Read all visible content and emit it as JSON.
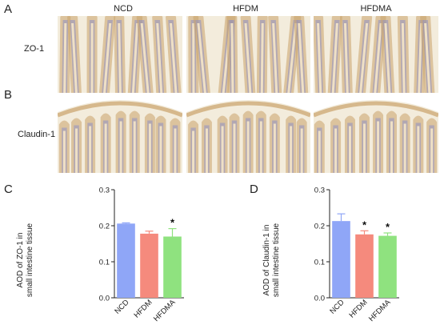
{
  "panels": {
    "A": "A",
    "B": "B",
    "C": "C",
    "D": "D"
  },
  "groups": [
    "NCD",
    "HFDM",
    "HFDMA"
  ],
  "rows": {
    "zo1": "ZO-1",
    "claudin1": "Claudin-1"
  },
  "colors": {
    "NCD": "#8fa6f7",
    "HFDM": "#f58a7d",
    "HFDMA": "#8fe27f",
    "tissue_stroma": "#f6e7c8",
    "tissue_nuclei": "#8e8fc4",
    "tissue_brown": "#c9a36a"
  },
  "chart_data": [
    {
      "type": "bar",
      "title": "",
      "xlabel": "",
      "ylabel": "AOD of ZO-1 in small intestine tissue",
      "ylabel_lines": [
        "AOD of ZO-1 in",
        "small intestine tissue"
      ],
      "categories": [
        "NCD",
        "HFDM",
        "HFDMA"
      ],
      "values": [
        0.206,
        0.178,
        0.17
      ],
      "errors": [
        0.002,
        0.007,
        0.022
      ],
      "significance": [
        "",
        "",
        "*"
      ],
      "ylim": [
        0.0,
        0.3
      ],
      "yticks": [
        "0.0",
        "0.1",
        "0.2",
        "0.3"
      ],
      "grid": false
    },
    {
      "type": "bar",
      "title": "",
      "xlabel": "",
      "ylabel": "AOD of Claudin-1 in small intestine tissue",
      "ylabel_lines": [
        "AOD of Claudin-1 in",
        "small intestine tissue"
      ],
      "categories": [
        "NCD",
        "HFDM",
        "HFDMA"
      ],
      "values": [
        0.213,
        0.176,
        0.172
      ],
      "errors": [
        0.02,
        0.01,
        0.008
      ],
      "significance": [
        "",
        "*",
        "*"
      ],
      "ylim": [
        0.0,
        0.3
      ],
      "yticks": [
        "0.0",
        "0.1",
        "0.2",
        "0.3"
      ],
      "grid": false
    }
  ]
}
